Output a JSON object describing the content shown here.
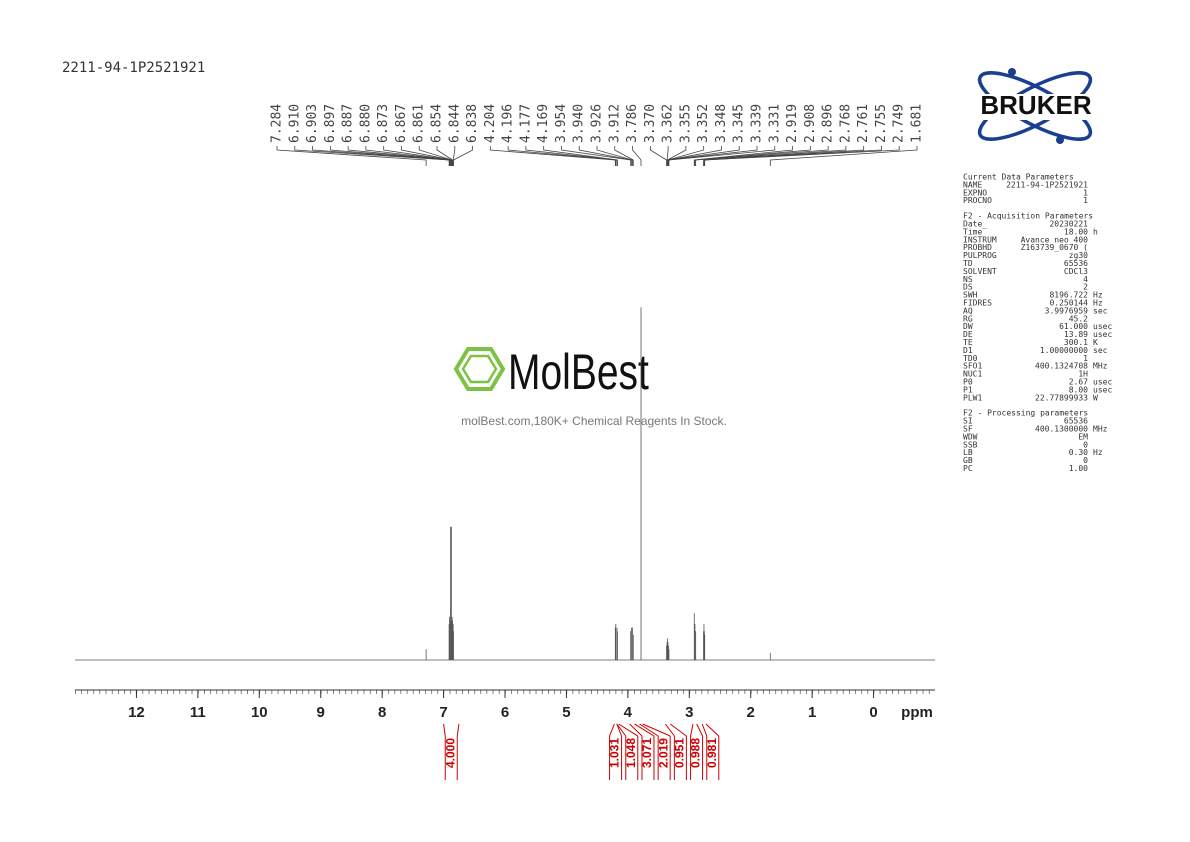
{
  "sample_id": "2211-94-1P2521921",
  "chart_data": {
    "type": "nmr",
    "x_label": "ppm",
    "xlim": [
      13,
      -1
    ],
    "xticks": [
      12,
      11,
      10,
      9,
      8,
      7,
      6,
      5,
      4,
      3,
      2,
      1,
      0
    ],
    "ylim": [
      0,
      100
    ],
    "color": "#555555",
    "peaks": [
      7.284,
      {
        "value": 6.91,
        "label": "6.910"
      },
      6.903,
      6.897,
      6.887,
      {
        "value": 6.88,
        "label": "6.880"
      },
      6.873,
      6.867,
      6.861,
      6.854,
      6.844,
      6.838,
      4.204,
      4.196,
      4.177,
      4.169,
      3.954,
      {
        "value": 3.94,
        "label": "3.940"
      },
      3.926,
      3.912,
      3.786,
      {
        "value": 3.37,
        "label": "3.370"
      },
      3.362,
      3.355,
      3.352,
      3.348,
      3.345,
      3.339,
      3.331,
      2.919,
      2.908,
      2.896,
      2.768,
      2.761,
      2.755,
      2.749,
      1.681
    ],
    "heights": [
      3,
      10,
      12,
      11,
      37,
      14,
      37,
      11,
      12,
      11,
      10,
      8,
      9,
      10,
      9,
      8,
      8,
      9,
      9,
      7,
      98,
      4,
      5,
      6,
      5,
      5,
      4,
      4,
      3,
      13,
      10,
      8,
      8,
      10,
      8,
      7,
      2
    ],
    "integral_color": "#cc0000",
    "integrals": [
      {
        "range": [
          7.0,
          6.75
        ],
        "value": 4,
        "label": "4.000"
      },
      {
        "range": [
          4.22,
          4.18
        ],
        "value": 1.031
      },
      {
        "range": [
          4.18,
          4.15
        ],
        "value": 1.048
      },
      {
        "range": [
          3.97,
          3.89
        ],
        "value": 3.071
      },
      {
        "range": [
          3.81,
          3.76
        ],
        "value": 2.019
      },
      {
        "range": [
          3.39,
          3.31
        ],
        "value": 0.951
      },
      {
        "range": [
          2.94,
          2.88
        ],
        "value": 0.988
      },
      {
        "range": [
          2.79,
          2.73
        ],
        "value": 0.981
      }
    ]
  },
  "watermark": {
    "brand": "MolBest",
    "tagline": "molBest.com,180K+ Chemical Reagents In Stock."
  },
  "logo": "BRUKER",
  "parameters": [
    {
      "title": "Current Data Parameters",
      "rows": [
        [
          "NAME",
          "2211-94-1P2521921"
        ],
        [
          "EXPNO",
          "1"
        ],
        [
          "PROCNO",
          "1"
        ]
      ]
    },
    {
      "title": "F2 - Acquisition Parameters",
      "rows": [
        [
          "Date_",
          "20230221"
        ],
        [
          "Time",
          "18.00",
          "h"
        ],
        [
          "INSTRUM",
          "Avance neo 400"
        ],
        [
          "PROBHD",
          "Z163739_0670 ("
        ],
        [
          "PULPROG",
          "zg30"
        ],
        [
          "TD",
          "65536"
        ],
        [
          "SOLVENT",
          "CDCl3"
        ],
        [
          "NS",
          "4"
        ],
        [
          "DS",
          "2"
        ],
        [
          "SWH",
          "8196.722",
          "Hz"
        ],
        [
          "FIDRES",
          "0.250144",
          "Hz"
        ],
        [
          "AQ",
          "3.9976959",
          "sec"
        ],
        [
          "RG",
          "45.2"
        ],
        [
          "DW",
          "61.000",
          "usec"
        ],
        [
          "DE",
          "13.89",
          "usec"
        ],
        [
          "TE",
          "300.1",
          "K"
        ],
        [
          "D1",
          "1.00000000",
          "sec"
        ],
        [
          "TD0",
          "1"
        ],
        [
          "SFO1",
          "400.1324708",
          "MHz"
        ],
        [
          "NUC1",
          "1H"
        ],
        [
          "P0",
          "2.67",
          "usec"
        ],
        [
          "P1",
          "8.00",
          "usec"
        ],
        [
          "PLW1",
          "22.77899933",
          "W"
        ]
      ]
    },
    {
      "title": "F2 - Processing parameters",
      "rows": [
        [
          "SI",
          "65536"
        ],
        [
          "SF",
          "400.1300000",
          "MHz"
        ],
        [
          "WDW",
          "EM"
        ],
        [
          "SSB",
          "0"
        ],
        [
          "LB",
          "0.30",
          "Hz"
        ],
        [
          "GB",
          "0"
        ],
        [
          "PC",
          "1.00"
        ]
      ]
    }
  ]
}
